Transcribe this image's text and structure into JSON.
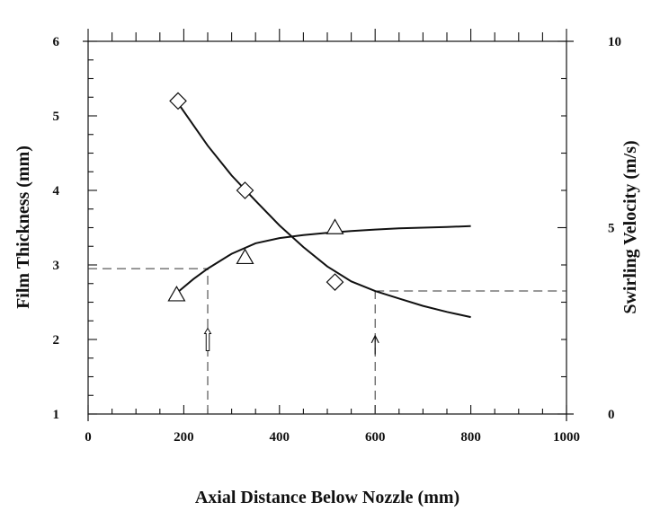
{
  "chart_data": {
    "type": "line",
    "title": "",
    "xlabel": "Axial Distance Below Nozzle (mm)",
    "ylabel": "Film Thickness (mm)",
    "y2label": "Swirling Velocity (m/s)",
    "xlim": [
      0,
      1000
    ],
    "ylim": [
      1,
      6
    ],
    "y2lim": [
      0,
      10
    ],
    "x_ticks": [
      "0",
      "200",
      "400",
      "600",
      "800",
      "1000"
    ],
    "y_ticks": [
      "1",
      "2",
      "3",
      "4",
      "5",
      "6"
    ],
    "y2_ticks": [
      "0",
      "5",
      "10"
    ],
    "grid": false,
    "legend": "none",
    "series": [
      {
        "axis": "left",
        "marker": "diamond",
        "points": [
          {
            "x": 188,
            "y": 5.2
          },
          {
            "x": 328,
            "y": 4.0
          },
          {
            "x": 516,
            "y": 2.77
          }
        ],
        "fit_curve": [
          {
            "x": 190,
            "y": 5.15
          },
          {
            "x": 250,
            "y": 4.6
          },
          {
            "x": 300,
            "y": 4.2
          },
          {
            "x": 350,
            "y": 3.86
          },
          {
            "x": 400,
            "y": 3.53
          },
          {
            "x": 450,
            "y": 3.24
          },
          {
            "x": 500,
            "y": 2.98
          },
          {
            "x": 550,
            "y": 2.78
          },
          {
            "x": 600,
            "y": 2.65
          },
          {
            "x": 650,
            "y": 2.55
          },
          {
            "x": 700,
            "y": 2.45
          },
          {
            "x": 750,
            "y": 2.37
          },
          {
            "x": 800,
            "y": 2.3
          }
        ]
      },
      {
        "axis": "right",
        "marker": "triangle",
        "points": [
          {
            "x": 185,
            "y": 3.2
          },
          {
            "x": 328,
            "y": 4.2
          },
          {
            "x": 516,
            "y": 5.0
          }
        ],
        "fit_curve": [
          {
            "x": 190,
            "y": 3.3
          },
          {
            "x": 220,
            "y": 3.62
          },
          {
            "x": 250,
            "y": 3.9
          },
          {
            "x": 300,
            "y": 4.3
          },
          {
            "x": 350,
            "y": 4.58
          },
          {
            "x": 400,
            "y": 4.72
          },
          {
            "x": 450,
            "y": 4.8
          },
          {
            "x": 500,
            "y": 4.86
          },
          {
            "x": 550,
            "y": 4.91
          },
          {
            "x": 600,
            "y": 4.95
          },
          {
            "x": 650,
            "y": 4.98
          },
          {
            "x": 700,
            "y": 5.0
          },
          {
            "x": 750,
            "y": 5.02
          },
          {
            "x": 800,
            "y": 5.04
          }
        ]
      }
    ],
    "reference_lines": [
      {
        "kind": "horizontal",
        "axis": "left",
        "y": 2.95,
        "x_from": 0,
        "x_to": 250
      },
      {
        "kind": "vertical",
        "x": 250,
        "y_from": 1,
        "y_to": 2.95
      },
      {
        "kind": "horizontal",
        "axis": "left",
        "y": 2.65,
        "x_from": 600,
        "x_to": 1000
      },
      {
        "kind": "vertical",
        "x": 600,
        "y_from": 1,
        "y_to": 2.65
      }
    ],
    "arrows": [
      {
        "x": 250,
        "y_from": 1.85,
        "y_to": 2.15,
        "style": "hollow"
      },
      {
        "x": 600,
        "y_from": 1.8,
        "y_to": 2.05,
        "style": "open"
      }
    ]
  }
}
